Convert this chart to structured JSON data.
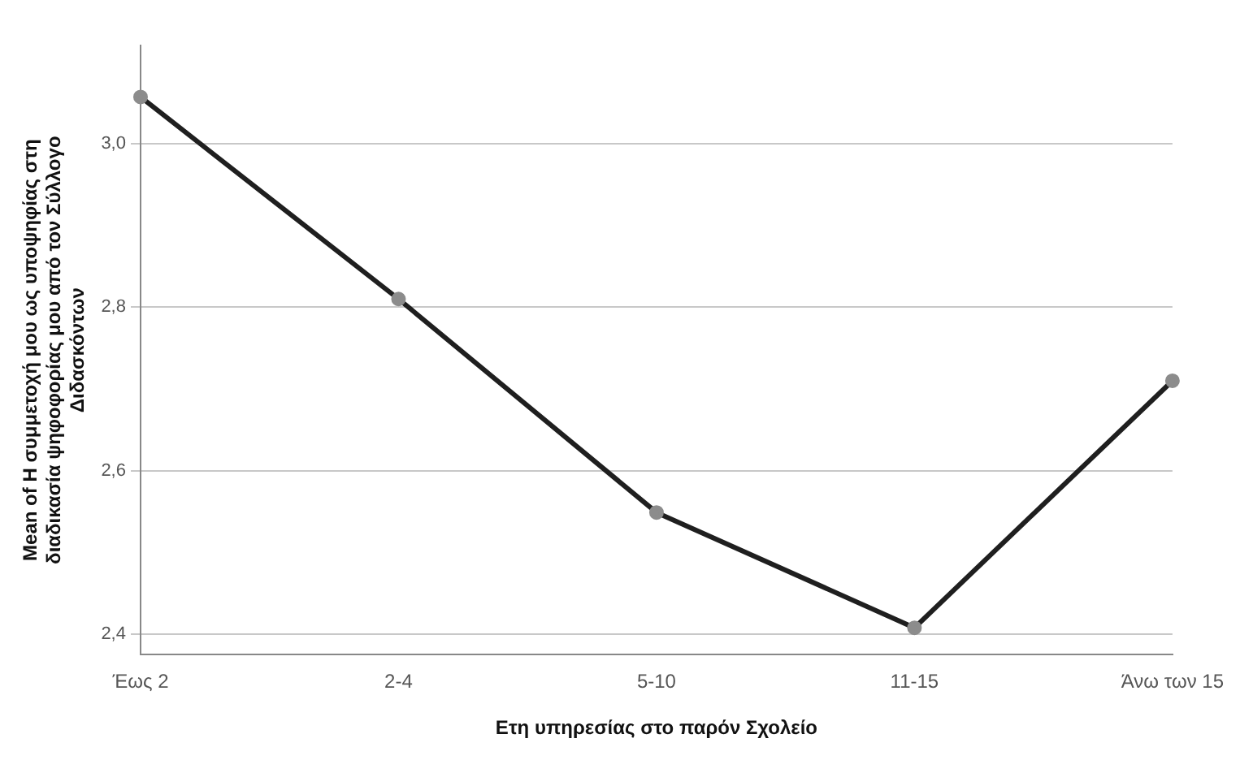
{
  "chart_data": {
    "type": "line",
    "xlabel": "Ετη υπηρεσίας στο παρόν Σχολείο",
    "ylabel": "Mean of Η συμμετοχή μου ως υποψηφίας στη διαδικασία ψηφοφορίας μου από τον Σύλλογο Διδασκόντων",
    "categories": [
      "Έως 2",
      "2-4",
      "5-10",
      "11-15",
      "Άνω των 15"
    ],
    "series": [
      {
        "color": "#1f1f1f",
        "values": [
          3.057,
          2.81,
          2.549,
          2.408,
          2.71
        ]
      }
    ],
    "ylim": [
      2.375,
      3.12
    ],
    "yticks": [
      {
        "value": 2.4,
        "label": "2,4"
      },
      {
        "value": 2.6,
        "label": "2,6"
      },
      {
        "value": 2.8,
        "label": "2,8"
      },
      {
        "value": 3.0,
        "label": "3,0"
      }
    ],
    "grid": "y",
    "legend": false,
    "marker": "circle",
    "line_style": "solid"
  }
}
